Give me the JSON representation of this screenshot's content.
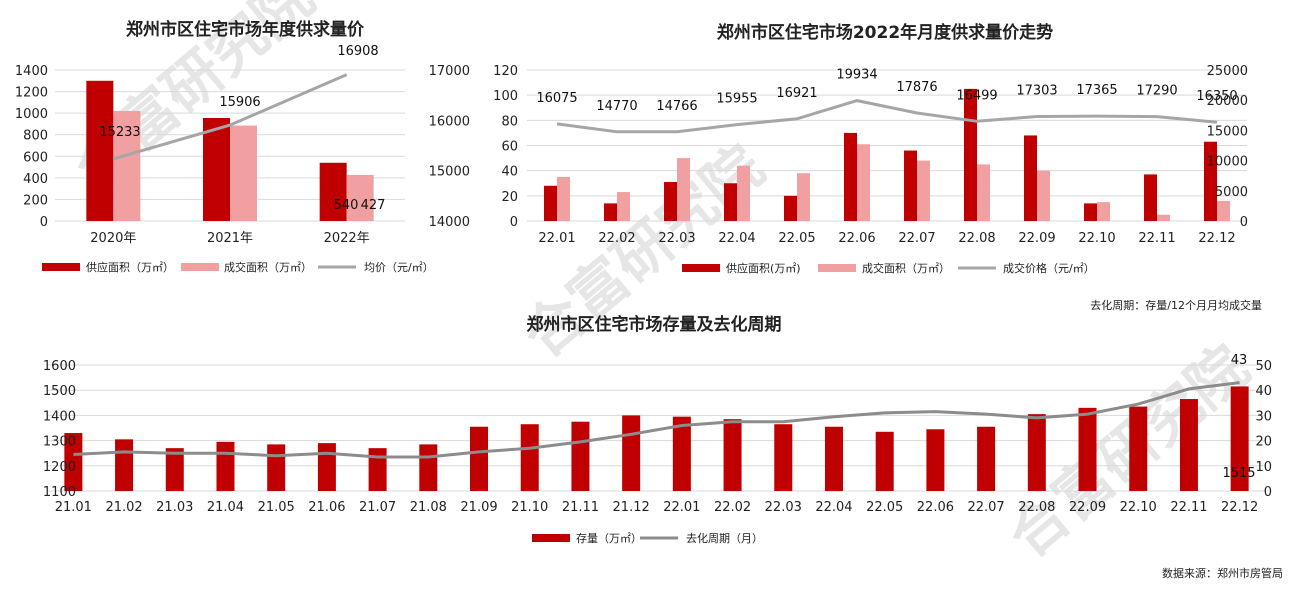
{
  "colors": {
    "supply": "#c00000",
    "deal": "#f0a0a0",
    "line": "#a6a6a6",
    "line2": "#8c8c8c"
  },
  "watermark": "合富研究院",
  "note": "去化周期：存量/12个月月均成交量",
  "source": "数据来源：郑州市房管局",
  "chart_data": [
    {
      "type": "bar",
      "title": "郑州市区住宅市场年度供求量价",
      "categories": [
        "2020年",
        "2021年",
        "2022年"
      ],
      "series": [
        {
          "name": "供应面积（万㎡）",
          "axis": "left",
          "values": [
            1300,
            955,
            540
          ]
        },
        {
          "name": "成交面积（万㎡）",
          "axis": "left",
          "values": [
            1020,
            885,
            427
          ]
        },
        {
          "name": "均价（元/㎡）",
          "axis": "right",
          "kind": "line",
          "values": [
            15233,
            15906,
            16908
          ]
        }
      ],
      "y_left": {
        "ticks": [
          "0",
          "200",
          "400",
          "600",
          "800",
          "1000",
          "1200",
          "1400"
        ],
        "lim": [
          0,
          1400
        ]
      },
      "y_right": {
        "ticks": [
          "14000",
          "15000",
          "16000",
          "17000"
        ],
        "lim": [
          14000,
          17000
        ]
      },
      "data_labels": [
        "15233",
        "15906",
        "16908",
        "540",
        "427"
      ]
    },
    {
      "type": "bar",
      "title": "郑州市区住宅市场2022年月度供求量价走势",
      "categories": [
        "22.01",
        "22.02",
        "22.03",
        "22.04",
        "22.05",
        "22.06",
        "22.07",
        "22.08",
        "22.09",
        "22.10",
        "22.11",
        "22.12"
      ],
      "series": [
        {
          "name": "供应面积(万㎡)",
          "axis": "left",
          "values": [
            28,
            14,
            31,
            30,
            20,
            70,
            56,
            105,
            68,
            14,
            37,
            63
          ]
        },
        {
          "name": "成交面积（万㎡）",
          "axis": "left",
          "values": [
            35,
            23,
            50,
            44,
            38,
            61,
            48,
            45,
            40,
            15,
            5,
            16
          ]
        },
        {
          "name": "成交价格（元/㎡）",
          "axis": "right",
          "kind": "line",
          "values": [
            16075,
            14770,
            14766,
            15955,
            16921,
            19934,
            17876,
            16499,
            17303,
            17365,
            17290,
            16350
          ]
        }
      ],
      "y_left": {
        "ticks": [
          "0",
          "20",
          "40",
          "60",
          "80",
          "100",
          "120"
        ],
        "lim": [
          0,
          120
        ]
      },
      "y_right": {
        "ticks": [
          "0",
          "5000",
          "10000",
          "15000",
          "20000",
          "25000"
        ],
        "lim": [
          0,
          25000
        ]
      },
      "data_labels": [
        "16075",
        "14770",
        "14766",
        "15955",
        "16921",
        "19934",
        "17876",
        "16499",
        "17303",
        "17365",
        "17290",
        "16350"
      ]
    },
    {
      "type": "bar",
      "title": "郑州市区住宅市场存量及去化周期",
      "categories": [
        "21.01",
        "21.02",
        "21.03",
        "21.04",
        "21.05",
        "21.06",
        "21.07",
        "21.08",
        "21.09",
        "21.10",
        "21.11",
        "21.12",
        "22.01",
        "22.02",
        "22.03",
        "22.04",
        "22.05",
        "22.06",
        "22.07",
        "22.08",
        "22.09",
        "22.10",
        "22.11",
        "22.12"
      ],
      "series": [
        {
          "name": "存量（万㎡）",
          "axis": "left",
          "values": [
            1330,
            1305,
            1270,
            1295,
            1285,
            1290,
            1270,
            1285,
            1355,
            1365,
            1375,
            1400,
            1395,
            1385,
            1365,
            1355,
            1335,
            1345,
            1355,
            1405,
            1430,
            1435,
            1465,
            1515
          ]
        },
        {
          "name": "去化周期（月）",
          "axis": "right",
          "kind": "line",
          "values": [
            14.5,
            15.5,
            15,
            15,
            14,
            15,
            13.5,
            13.5,
            15.5,
            17,
            19.5,
            22.5,
            26,
            27.5,
            27.5,
            29.5,
            31,
            31.5,
            30.5,
            29,
            30.5,
            34.5,
            40.5,
            43
          ]
        }
      ],
      "y_left": {
        "ticks": [
          "1100",
          "1200",
          "1300",
          "1400",
          "1500",
          "1600"
        ],
        "lim": [
          1100,
          1600
        ]
      },
      "y_right": {
        "ticks": [
          "0",
          "10",
          "20",
          "30",
          "40",
          "50"
        ],
        "lim": [
          0,
          50
        ]
      },
      "data_labels": [
        "43",
        "1515"
      ]
    }
  ]
}
